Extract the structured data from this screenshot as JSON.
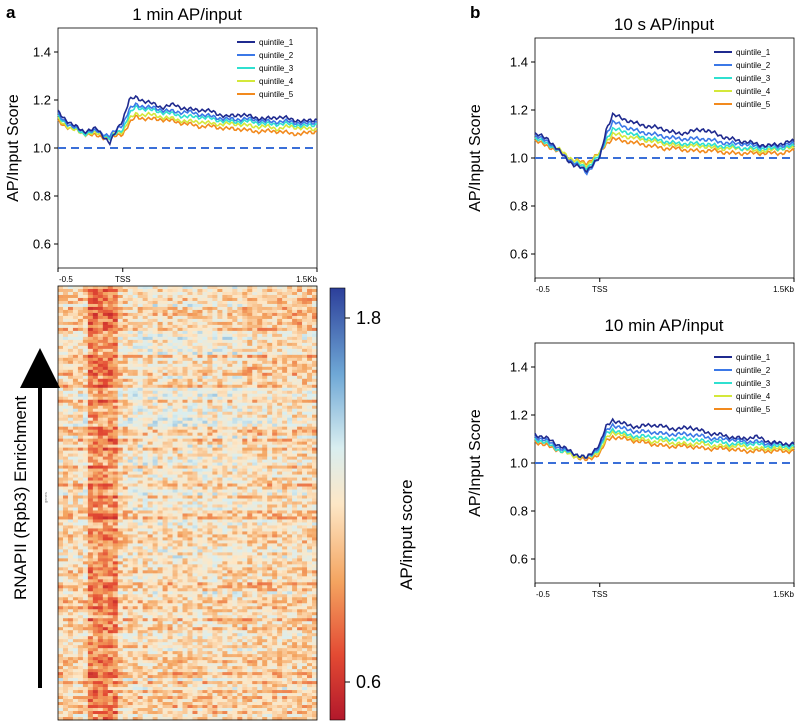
{
  "panel_labels": {
    "a": "a",
    "b": "b"
  },
  "side_label": "RNAPII (Rpb3) Enrichment",
  "heatmap_tiny_label": "genes",
  "colorbar": {
    "label": "AP/input score",
    "ticks": [
      "1.8",
      "0.6"
    ],
    "min": 0.55,
    "max": 1.85
  },
  "colors": {
    "quintile_1": "#1f2a8f",
    "quintile_2": "#3b78e7",
    "quintile_3": "#2fe0d0",
    "quintile_4": "#d4e83a",
    "quintile_5": "#f28a1e",
    "baseline": "#3a6fd8"
  },
  "chart_data": [
    {
      "type": "line",
      "title": "1 min AP/input",
      "ylabel": "AP/Input Score",
      "ylim": [
        0.5,
        1.5
      ],
      "yticks": [
        "1.4",
        "1.2",
        "1.0",
        "0.8",
        "0.6"
      ],
      "xtick_labels": [
        "-0.5",
        "TSS",
        "1.5Kb"
      ],
      "xlim": [
        -0.5,
        1.5
      ],
      "x": [
        -0.5,
        -0.4,
        -0.3,
        -0.2,
        -0.1,
        0.0,
        0.05,
        0.1,
        0.2,
        0.3,
        0.4,
        0.5,
        0.6,
        0.7,
        0.8,
        0.9,
        1.0,
        1.1,
        1.2,
        1.3,
        1.4,
        1.5
      ],
      "baseline": 1.0,
      "legend_position": "top-right",
      "series": [
        {
          "name": "quintile_1",
          "values": [
            1.15,
            1.1,
            1.07,
            1.08,
            1.02,
            1.12,
            1.2,
            1.21,
            1.19,
            1.17,
            1.18,
            1.16,
            1.16,
            1.15,
            1.13,
            1.14,
            1.13,
            1.12,
            1.13,
            1.12,
            1.11,
            1.12
          ]
        },
        {
          "name": "quintile_2",
          "values": [
            1.14,
            1.09,
            1.07,
            1.07,
            1.05,
            1.1,
            1.16,
            1.18,
            1.17,
            1.16,
            1.15,
            1.15,
            1.14,
            1.13,
            1.12,
            1.12,
            1.12,
            1.11,
            1.11,
            1.11,
            1.1,
            1.11
          ]
        },
        {
          "name": "quintile_3",
          "values": [
            1.13,
            1.09,
            1.06,
            1.07,
            1.04,
            1.08,
            1.14,
            1.17,
            1.16,
            1.15,
            1.14,
            1.13,
            1.13,
            1.12,
            1.11,
            1.11,
            1.11,
            1.1,
            1.1,
            1.1,
            1.09,
            1.1
          ]
        },
        {
          "name": "quintile_4",
          "values": [
            1.12,
            1.08,
            1.06,
            1.06,
            1.05,
            1.07,
            1.12,
            1.14,
            1.14,
            1.13,
            1.12,
            1.11,
            1.11,
            1.1,
            1.1,
            1.1,
            1.09,
            1.09,
            1.08,
            1.09,
            1.08,
            1.08
          ]
        },
        {
          "name": "quintile_5",
          "values": [
            1.11,
            1.08,
            1.06,
            1.05,
            1.04,
            1.06,
            1.1,
            1.13,
            1.12,
            1.12,
            1.11,
            1.1,
            1.09,
            1.09,
            1.08,
            1.08,
            1.07,
            1.07,
            1.07,
            1.06,
            1.06,
            1.07
          ]
        }
      ]
    },
    {
      "type": "line",
      "title": "10 s AP/input",
      "ylabel": "AP/Input Score",
      "ylim": [
        0.5,
        1.5
      ],
      "yticks": [
        "1.4",
        "1.2",
        "1.0",
        "0.8",
        "0.6"
      ],
      "xtick_labels": [
        "-0.5",
        "TSS",
        "1.5Kb"
      ],
      "xlim": [
        -0.5,
        1.5
      ],
      "x": [
        -0.5,
        -0.4,
        -0.3,
        -0.2,
        -0.1,
        0.0,
        0.05,
        0.1,
        0.2,
        0.3,
        0.4,
        0.5,
        0.6,
        0.7,
        0.8,
        0.9,
        1.0,
        1.1,
        1.2,
        1.3,
        1.4,
        1.5
      ],
      "baseline": 1.0,
      "legend_position": "top-right",
      "series": [
        {
          "name": "quintile_1",
          "values": [
            1.1,
            1.08,
            1.02,
            0.97,
            0.95,
            1.0,
            1.12,
            1.18,
            1.16,
            1.14,
            1.13,
            1.12,
            1.1,
            1.11,
            1.12,
            1.1,
            1.08,
            1.07,
            1.06,
            1.05,
            1.06,
            1.07
          ]
        },
        {
          "name": "quintile_2",
          "values": [
            1.09,
            1.07,
            1.02,
            0.98,
            0.94,
            1.0,
            1.1,
            1.15,
            1.13,
            1.11,
            1.1,
            1.09,
            1.08,
            1.08,
            1.08,
            1.07,
            1.06,
            1.06,
            1.05,
            1.05,
            1.05,
            1.06
          ]
        },
        {
          "name": "quintile_3",
          "values": [
            1.08,
            1.06,
            1.02,
            0.98,
            0.96,
            1.01,
            1.08,
            1.12,
            1.11,
            1.09,
            1.08,
            1.07,
            1.06,
            1.06,
            1.06,
            1.05,
            1.05,
            1.04,
            1.04,
            1.04,
            1.04,
            1.05
          ]
        },
        {
          "name": "quintile_4",
          "values": [
            1.08,
            1.06,
            1.03,
            0.99,
            0.97,
            1.02,
            1.07,
            1.1,
            1.09,
            1.08,
            1.07,
            1.06,
            1.05,
            1.05,
            1.05,
            1.04,
            1.04,
            1.04,
            1.03,
            1.03,
            1.04,
            1.04
          ]
        },
        {
          "name": "quintile_5",
          "values": [
            1.07,
            1.05,
            1.02,
            0.99,
            0.98,
            1.02,
            1.06,
            1.08,
            1.07,
            1.06,
            1.05,
            1.04,
            1.04,
            1.03,
            1.03,
            1.03,
            1.02,
            1.02,
            1.02,
            1.02,
            1.02,
            1.03
          ]
        }
      ]
    },
    {
      "type": "line",
      "title": "10 min AP/input",
      "ylabel": "AP/Input Score",
      "ylim": [
        0.5,
        1.5
      ],
      "yticks": [
        "1.4",
        "1.2",
        "1.0",
        "0.8",
        "0.6"
      ],
      "xtick_labels": [
        "-0.5",
        "TSS",
        "1.5Kb"
      ],
      "xlim": [
        -0.5,
        1.5
      ],
      "x": [
        -0.5,
        -0.4,
        -0.3,
        -0.2,
        -0.1,
        0.0,
        0.05,
        0.1,
        0.2,
        0.3,
        0.4,
        0.5,
        0.6,
        0.7,
        0.8,
        0.9,
        1.0,
        1.1,
        1.2,
        1.3,
        1.4,
        1.5
      ],
      "baseline": 1.0,
      "legend_position": "top-right",
      "series": [
        {
          "name": "quintile_1",
          "values": [
            1.12,
            1.1,
            1.07,
            1.04,
            1.02,
            1.08,
            1.15,
            1.18,
            1.16,
            1.15,
            1.16,
            1.15,
            1.14,
            1.15,
            1.13,
            1.12,
            1.11,
            1.1,
            1.11,
            1.09,
            1.08,
            1.08
          ]
        },
        {
          "name": "quintile_2",
          "values": [
            1.11,
            1.09,
            1.06,
            1.04,
            1.02,
            1.07,
            1.13,
            1.16,
            1.14,
            1.13,
            1.13,
            1.12,
            1.12,
            1.12,
            1.11,
            1.1,
            1.1,
            1.09,
            1.09,
            1.08,
            1.08,
            1.08
          ]
        },
        {
          "name": "quintile_3",
          "values": [
            1.1,
            1.08,
            1.05,
            1.04,
            1.02,
            1.06,
            1.12,
            1.14,
            1.12,
            1.11,
            1.11,
            1.1,
            1.1,
            1.1,
            1.09,
            1.09,
            1.08,
            1.08,
            1.08,
            1.07,
            1.07,
            1.07
          ]
        },
        {
          "name": "quintile_4",
          "values": [
            1.1,
            1.08,
            1.05,
            1.03,
            1.02,
            1.05,
            1.1,
            1.13,
            1.11,
            1.1,
            1.09,
            1.09,
            1.08,
            1.08,
            1.08,
            1.07,
            1.07,
            1.07,
            1.06,
            1.06,
            1.06,
            1.06
          ]
        },
        {
          "name": "quintile_5",
          "values": [
            1.09,
            1.07,
            1.05,
            1.03,
            1.01,
            1.04,
            1.09,
            1.11,
            1.1,
            1.09,
            1.08,
            1.07,
            1.07,
            1.07,
            1.06,
            1.06,
            1.06,
            1.05,
            1.05,
            1.05,
            1.05,
            1.05
          ]
        }
      ]
    }
  ]
}
